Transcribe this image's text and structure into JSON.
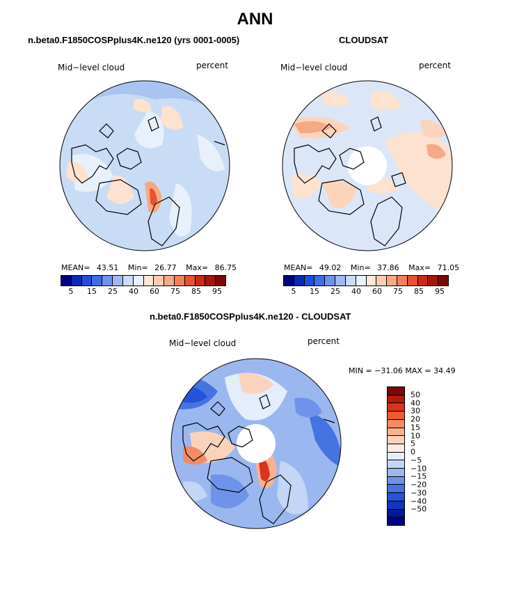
{
  "figure": {
    "title": "ANN"
  },
  "panel_model": {
    "subtitle": "n.beta0.F1850COSPplus4K.ne120 (yrs 0001-0005)",
    "left_label": "Mid−level cloud",
    "right_label": "percent",
    "mean_label": "MEAN=",
    "mean_value": "43.51",
    "min_label": "Min=",
    "min_value": "26.77",
    "max_label": "Max=",
    "max_value": "86.75"
  },
  "panel_obs": {
    "subtitle": "CLOUDSAT",
    "left_label": "Mid−level cloud",
    "right_label": "percent",
    "mean_label": "MEAN=",
    "mean_value": "49.02",
    "min_label": "Min=",
    "min_value": "37.86",
    "max_label": "Max=",
    "max_value": "71.05"
  },
  "panel_diff": {
    "subtitle": "n.beta0.F1850COSPplus4K.ne120 - CLOUDSAT",
    "left_label": "Mid−level cloud",
    "right_label": "percent",
    "minmax_text": "MIN = −31.06 MAX =  34.49"
  },
  "colorbar_abs": {
    "colors": [
      "#000080",
      "#0a2ab4",
      "#1f4fd8",
      "#3d6ee8",
      "#6e93ee",
      "#9fb8f0",
      "#cadcf6",
      "#e8f0fb",
      "#fde8d8",
      "#fccdb1",
      "#f7a985",
      "#f1805b",
      "#e8522f",
      "#cc2a14",
      "#a5150b",
      "#7c0706"
    ],
    "ticks": [
      "5",
      "15",
      "25",
      "40",
      "60",
      "75",
      "85",
      "95"
    ]
  },
  "colorbar_diff": {
    "colors": [
      "#7c0706",
      "#b21a0d",
      "#d9331a",
      "#f05a32",
      "#f68a60",
      "#f9b18f",
      "#fbd3bb",
      "#fdecde",
      "#e3edfb",
      "#c3d6f5",
      "#9bb7ef",
      "#6f93ea",
      "#4573e2",
      "#2553d6",
      "#0f35bb",
      "#001a99",
      "#000080"
    ],
    "ticks": [
      "50",
      "40",
      "30",
      "20",
      "15",
      "10",
      "5",
      "0",
      "−5",
      "−10",
      "−15",
      "−20",
      "−30",
      "−40",
      "−50"
    ]
  }
}
